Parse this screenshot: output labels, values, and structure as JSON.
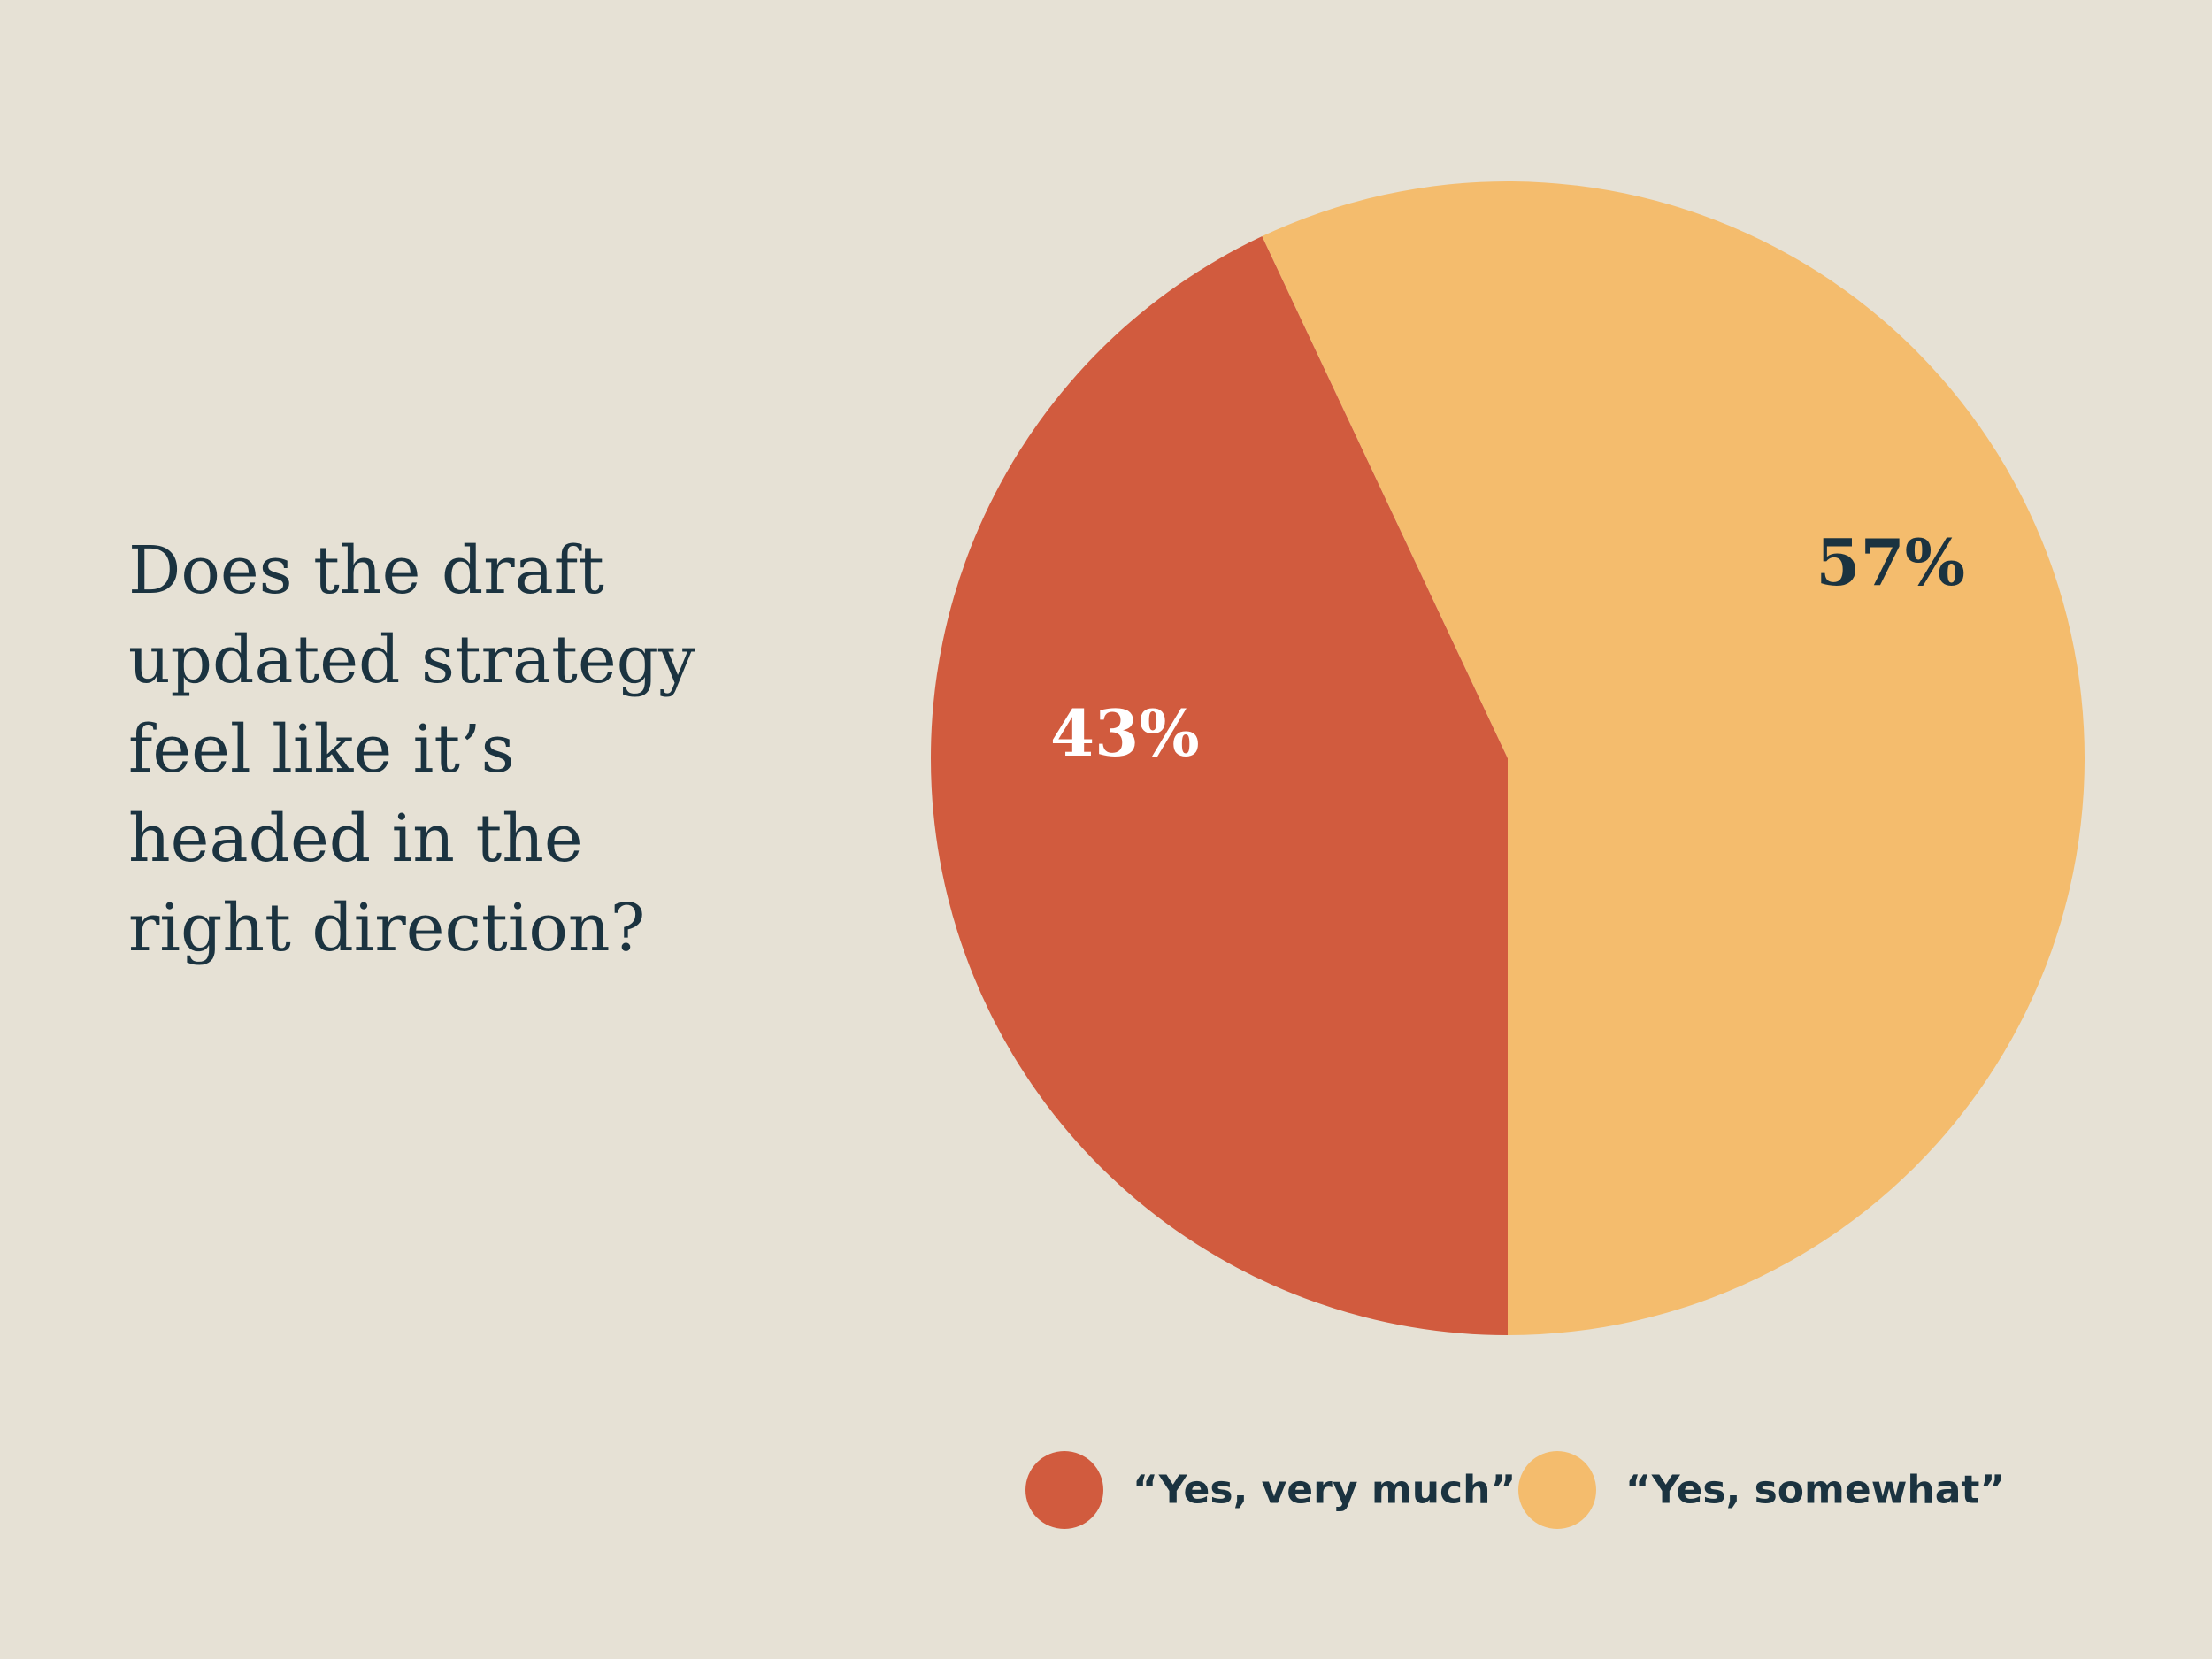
{
  "chart_data": {
    "type": "pie",
    "title_lines": [
      "Does the draft",
      "updated strategy",
      "feel like it’s",
      "headed in the",
      "right direction?"
    ],
    "slices": [
      {
        "label": "“Yes, very much”",
        "value": 43,
        "value_label": "43%",
        "color": "#d15b3e",
        "label_color": "#ffffff"
      },
      {
        "label": "“Yes, somewhat”",
        "value": 57,
        "value_label": "57%",
        "color": "#f4bc6d",
        "label_color": "#1b3340"
      }
    ],
    "legend_position": "bottom-right"
  },
  "colors": {
    "background": "#e6e1d5",
    "text": "#1b3340"
  }
}
